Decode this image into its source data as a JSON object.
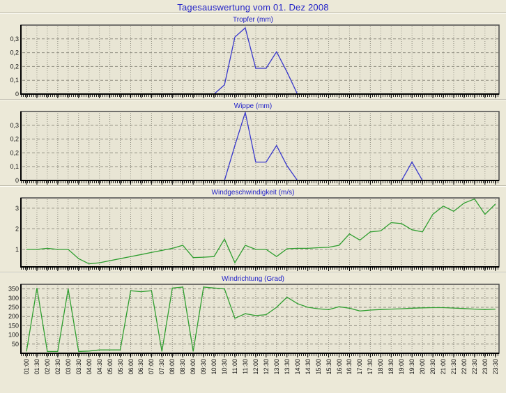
{
  "page": {
    "title": "Tagesauswertung vom 01. Dez 2008",
    "title_color": "#2424c8",
    "background_color": "#ece9d8",
    "plot_background_color": "#e8e5d4"
  },
  "chart_data": {
    "type": "line",
    "x_axis_label": "",
    "grid": "on",
    "categories": [
      "01:00",
      "01:30",
      "02:00",
      "02:30",
      "03:00",
      "03:30",
      "04:00",
      "04:30",
      "05:00",
      "05:30",
      "06:00",
      "06:30",
      "07:00",
      "07:30",
      "08:00",
      "08:30",
      "09:00",
      "09:30",
      "10:00",
      "10:30",
      "11:00",
      "11:30",
      "12:00",
      "12:30",
      "13:00",
      "13:30",
      "14:00",
      "14:30",
      "15:00",
      "15:30",
      "16:00",
      "16:30",
      "17:00",
      "17:30",
      "18:00",
      "18:30",
      "19:00",
      "19:30",
      "20:00",
      "20:30",
      "21:00",
      "21:30",
      "22:00",
      "22:30",
      "23:00",
      "23:30"
    ],
    "charts": [
      {
        "title": "Tropfer (mm)",
        "title_color": "#1f1fc8",
        "color": "#3737cc",
        "ymin": 0,
        "ymax": 0.375,
        "y_ticks": [
          {
            "label": "0",
            "value": 0
          },
          {
            "label": "0,1",
            "value": 0.075
          },
          {
            "label": "0,2",
            "value": 0.15
          },
          {
            "label": "0,2",
            "value": 0.225
          },
          {
            "label": "0,3",
            "value": 0.3
          }
        ],
        "values": [
          0,
          0,
          0,
          0,
          0,
          0,
          0,
          0,
          0,
          0,
          0,
          0,
          0,
          0,
          0,
          0,
          0,
          0,
          0,
          0.05,
          0.31,
          0.36,
          0.14,
          0.14,
          0.23,
          0.12,
          0,
          0,
          0,
          0,
          0,
          0,
          0,
          0,
          0,
          0,
          0,
          0,
          0,
          0,
          0,
          0,
          0,
          0,
          0,
          0
        ]
      },
      {
        "title": "Wippe (mm)",
        "title_color": "#1f1fc8",
        "color": "#3737cc",
        "ymin": 0,
        "ymax": 0.375,
        "y_ticks": [
          {
            "label": "0",
            "value": 0
          },
          {
            "label": "0,1",
            "value": 0.075
          },
          {
            "label": "0,2",
            "value": 0.15
          },
          {
            "label": "0,2",
            "value": 0.225
          },
          {
            "label": "0,3",
            "value": 0.3
          }
        ],
        "values": [
          0,
          0,
          0,
          0,
          0,
          0,
          0,
          0,
          0,
          0,
          0,
          0,
          0,
          0,
          0,
          0,
          0,
          0,
          0,
          0,
          0.19,
          0.37,
          0.1,
          0.1,
          0.19,
          0.08,
          0,
          0,
          0,
          0,
          0,
          0,
          0,
          0,
          0,
          0,
          0,
          0.1,
          0,
          0,
          0,
          0,
          0,
          0,
          0,
          0
        ]
      },
      {
        "title": "Windgeschwindigkeit (m/s)",
        "title_color": "#1f1fc8",
        "color": "#2f9e2f",
        "ymin": 0.15,
        "ymax": 3.5,
        "y_ticks": [
          {
            "label": "1",
            "value": 1
          },
          {
            "label": "2",
            "value": 2
          },
          {
            "label": "3",
            "value": 3
          }
        ],
        "values": [
          1.0,
          1.0,
          1.05,
          1.0,
          1.0,
          0.55,
          0.3,
          0.35,
          0.45,
          0.55,
          0.65,
          0.75,
          0.85,
          0.95,
          1.05,
          1.2,
          0.6,
          0.62,
          0.65,
          1.5,
          0.35,
          1.2,
          1.0,
          1.0,
          0.65,
          1.03,
          1.05,
          1.05,
          1.08,
          1.1,
          1.2,
          1.75,
          1.45,
          1.85,
          1.9,
          2.3,
          2.25,
          1.95,
          1.85,
          2.7,
          3.1,
          2.85,
          3.25,
          3.45,
          2.7,
          3.2
        ]
      },
      {
        "title": "Windrichtung (Grad)",
        "title_color": "#1f1fc8",
        "color": "#2f9e2f",
        "ymin": 0,
        "ymax": 375,
        "y_ticks": [
          {
            "label": "50",
            "value": 50
          },
          {
            "label": "100",
            "value": 100
          },
          {
            "label": "150",
            "value": 150
          },
          {
            "label": "200",
            "value": 200
          },
          {
            "label": "250",
            "value": 250
          },
          {
            "label": "300",
            "value": 300
          },
          {
            "label": "350",
            "value": 350
          }
        ],
        "values": [
          10,
          355,
          10,
          10,
          350,
          10,
          12,
          18,
          18,
          18,
          340,
          335,
          340,
          10,
          355,
          360,
          10,
          360,
          355,
          350,
          190,
          215,
          205,
          210,
          250,
          305,
          270,
          250,
          242,
          237,
          253,
          245,
          230,
          235,
          238,
          240,
          242,
          245,
          247,
          248,
          248,
          246,
          243,
          240,
          238,
          240
        ]
      }
    ]
  }
}
